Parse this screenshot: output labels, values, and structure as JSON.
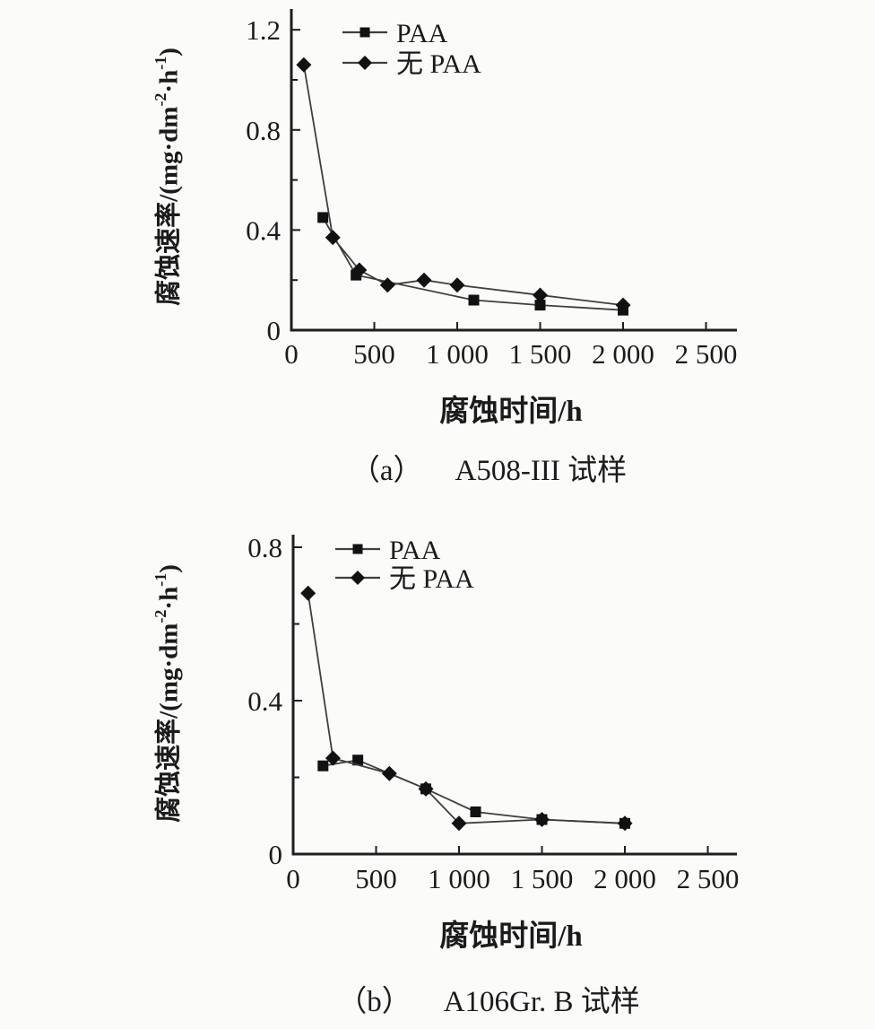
{
  "figure": {
    "background": "#fbfbfa",
    "text_color": "#1b1b1b",
    "axis_color": "#1e1e1e",
    "line_color": "#3f3f3f",
    "marker_color": "#111111"
  },
  "chart_data": [
    {
      "type": "line",
      "panel": "a",
      "caption_index": "（a）",
      "caption_title": "A508-III 试样",
      "xlabel": "腐蚀时间/h",
      "ylabel": "腐蚀速率/(mg·dm⁻²·h⁻¹)",
      "ylabel_parts": {
        "main": "腐蚀速率/(mg·dm",
        "sup1": "-2",
        "mid": "·h",
        "sup2": "-1",
        "close": ")"
      },
      "xlim": [
        0,
        2690
      ],
      "ylim": [
        0,
        1.28
      ],
      "x_tick_values": [
        0,
        500,
        1000,
        1500,
        2000,
        2500
      ],
      "x_tick_labels": [
        "0",
        "500",
        "1 000",
        "1 500",
        "2 000",
        "2 500"
      ],
      "y_tick_values": [
        0,
        0.4,
        0.8,
        1.2
      ],
      "y_tick_labels": [
        "0",
        "0.4",
        "0.8",
        "1.2"
      ],
      "y_minor_tick_values": [
        0.2,
        0.6,
        1.0
      ],
      "grid": false,
      "legend_position": "top-left-inside",
      "legend": [
        "PAA",
        "无 PAA"
      ],
      "series": [
        {
          "name": "PAA",
          "marker": "square",
          "x": [
            190,
            390,
            1100,
            1500,
            2000
          ],
          "y": [
            0.45,
            0.22,
            0.12,
            0.1,
            0.08
          ]
        },
        {
          "name": "无 PAA",
          "marker": "diamond",
          "x": [
            75,
            250,
            410,
            580,
            800,
            1000,
            1500,
            2000
          ],
          "y": [
            1.06,
            0.37,
            0.24,
            0.18,
            0.2,
            0.18,
            0.14,
            0.1
          ]
        }
      ]
    },
    {
      "type": "line",
      "panel": "b",
      "caption_index": "（b）",
      "caption_title": "A106Gr. B 试样",
      "xlabel": "腐蚀时间/h",
      "ylabel": "腐蚀速率/(mg·dm⁻²·h⁻¹)",
      "ylabel_parts": {
        "main": "腐蚀速率/(mg·dm",
        "sup1": "-2",
        "mid": "·h",
        "sup2": "-1",
        "close": ")"
      },
      "xlim": [
        0,
        2690
      ],
      "ylim": [
        0,
        0.85
      ],
      "x_tick_values": [
        0,
        500,
        1000,
        1500,
        2000,
        2500
      ],
      "x_tick_labels": [
        "0",
        "500",
        "1 000",
        "1 500",
        "2 000",
        "2 500"
      ],
      "y_tick_values": [
        0,
        0.4,
        0.8
      ],
      "y_tick_labels": [
        "0",
        "0.4",
        "0.8"
      ],
      "y_minor_tick_values": [
        0.2,
        0.6
      ],
      "grid": false,
      "legend_position": "top-left-inside",
      "legend": [
        "PAA",
        "无 PAA"
      ],
      "series": [
        {
          "name": "PAA",
          "marker": "square",
          "x": [
            180,
            390,
            800,
            1100,
            1500,
            2000
          ],
          "y": [
            0.23,
            0.245,
            0.17,
            0.11,
            0.09,
            0.08
          ]
        },
        {
          "name": "无 PAA",
          "marker": "diamond",
          "x": [
            90,
            240,
            580,
            800,
            1000,
            1500,
            2000
          ],
          "y": [
            0.68,
            0.25,
            0.21,
            0.17,
            0.08,
            0.09,
            0.08
          ]
        }
      ]
    }
  ]
}
